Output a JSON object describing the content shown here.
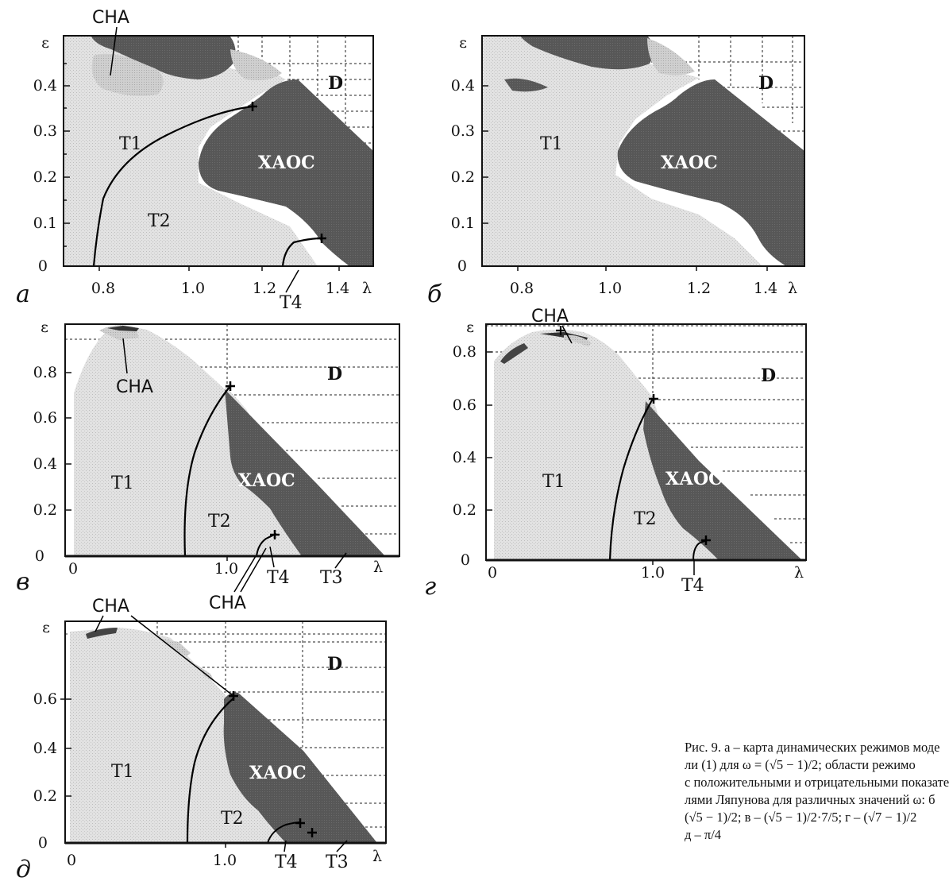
{
  "panels": [
    {
      "id": "a",
      "panel_label": "а",
      "x_axis": {
        "symbol": "λ",
        "ticks": [
          "0.8",
          "1.0",
          "1.2",
          "1.4"
        ]
      },
      "y_axis": {
        "symbol": "ε",
        "ticks": [
          "0",
          "0.1",
          "0.2",
          "0.3",
          "0.4"
        ]
      },
      "regions": [
        "CHA",
        "D",
        "T1",
        "ХАОС",
        "T2",
        "T4"
      ]
    },
    {
      "id": "b",
      "panel_label": "б",
      "x_axis": {
        "symbol": "λ",
        "ticks": [
          "0.8",
          "1.0",
          "1.2",
          "1.4"
        ]
      },
      "y_axis": {
        "symbol": "ε",
        "ticks": [
          "0",
          "0.1",
          "0.2",
          "0.3",
          "0.4"
        ]
      },
      "regions": [
        "D",
        "T1",
        "ХАОС"
      ]
    },
    {
      "id": "v",
      "panel_label": "в",
      "x_axis": {
        "symbol": "λ",
        "ticks": [
          "0",
          "1.0"
        ]
      },
      "y_axis": {
        "symbol": "ε",
        "ticks": [
          "0",
          "0.2",
          "0.4",
          "0.6",
          "0.8"
        ]
      },
      "regions": [
        "CHA",
        "D",
        "T1",
        "ХАОС",
        "T2",
        "T4",
        "T3",
        "CHA"
      ]
    },
    {
      "id": "g",
      "panel_label": "г",
      "x_axis": {
        "symbol": "λ",
        "ticks": [
          "0",
          "1.0"
        ]
      },
      "y_axis": {
        "symbol": "ε",
        "ticks": [
          "0",
          "0.2",
          "0.4",
          "0.6",
          "0.8"
        ]
      },
      "regions": [
        "CHA",
        "D",
        "T1",
        "ХАОС",
        "T2",
        "T4"
      ]
    },
    {
      "id": "d",
      "panel_label": "д",
      "x_axis": {
        "symbol": "λ",
        "ticks": [
          "0",
          "1.0"
        ]
      },
      "y_axis": {
        "symbol": "ε",
        "ticks": [
          "0",
          "0.2",
          "0.4",
          "0.6"
        ]
      },
      "regions": [
        "CHA",
        "D",
        "T1",
        "ХАОС",
        "T2",
        "T4",
        "T3"
      ]
    }
  ],
  "caption": {
    "lines": [
      "Рис. 9. а – карта динамических режимов моде",
      "ли (1) для ω = (√5 − 1)/2; области режимо",
      "с положительными и отрицательными показате",
      "лями Ляпунова для различных значений ω: б",
      "(√5 − 1)/2; в – (√5 − 1)/2·7/5; г – (√7 − 1)/2",
      "д – π/4"
    ]
  },
  "colors": {
    "light_region": "#d9d9d9",
    "dark_region": "#595959",
    "frame": "#111111"
  }
}
